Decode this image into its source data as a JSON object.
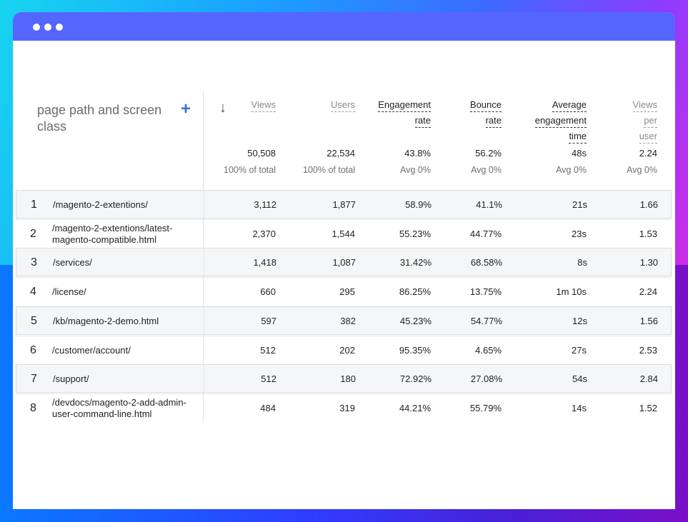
{
  "window": {
    "titlebar_color": "#5566ff"
  },
  "header": {
    "dimension_label": "page path and screen class",
    "columns": [
      {
        "key": "views",
        "lines": [
          "Views"
        ],
        "total": "50,508",
        "sub": "100% of total",
        "emphasis": false
      },
      {
        "key": "users",
        "lines": [
          "Users"
        ],
        "total": "22,534",
        "sub": "100% of total",
        "emphasis": false
      },
      {
        "key": "engagement_rate",
        "lines": [
          "Engagement",
          "rate"
        ],
        "total": "43.8%",
        "sub": "Avg 0%",
        "emphasis": true
      },
      {
        "key": "bounce_rate",
        "lines": [
          "Bounce",
          "rate"
        ],
        "total": "56.2%",
        "sub": "Avg 0%",
        "emphasis": true
      },
      {
        "key": "avg_engagement_time",
        "lines": [
          "Average",
          "engagement",
          "time"
        ],
        "total": "48s",
        "sub": "Avg 0%",
        "emphasis": true
      },
      {
        "key": "views_per_user",
        "lines": [
          "Views",
          "per",
          "user"
        ],
        "total": "2.24",
        "sub": "Avg 0%",
        "emphasis": false
      }
    ]
  },
  "rows": [
    {
      "index": "1",
      "path": "/magento-2-extentions/",
      "views": "3,112",
      "users": "1,877",
      "engagement_rate": "58.9%",
      "bounce_rate": "41.1%",
      "avg_engagement_time": "21s",
      "views_per_user": "1.66"
    },
    {
      "index": "2",
      "path": "/magento-2-extentions/latest-magento-compatible.html",
      "views": "2,370",
      "users": "1,544",
      "engagement_rate": "55.23%",
      "bounce_rate": "44.77%",
      "avg_engagement_time": "23s",
      "views_per_user": "1.53"
    },
    {
      "index": "3",
      "path": "/services/",
      "views": "1,418",
      "users": "1,087",
      "engagement_rate": "31.42%",
      "bounce_rate": "68.58%",
      "avg_engagement_time": "8s",
      "views_per_user": "1.30"
    },
    {
      "index": "4",
      "path": "/license/",
      "views": "660",
      "users": "295",
      "engagement_rate": "86.25%",
      "bounce_rate": "13.75%",
      "avg_engagement_time": "1m 10s",
      "views_per_user": "2.24"
    },
    {
      "index": "5",
      "path": "/kb/magento-2-demo.html",
      "views": "597",
      "users": "382",
      "engagement_rate": "45.23%",
      "bounce_rate": "54.77%",
      "avg_engagement_time": "12s",
      "views_per_user": "1.56"
    },
    {
      "index": "6",
      "path": "/customer/account/",
      "views": "512",
      "users": "202",
      "engagement_rate": "95.35%",
      "bounce_rate": "4.65%",
      "avg_engagement_time": "27s",
      "views_per_user": "2.53"
    },
    {
      "index": "7",
      "path": "/support/",
      "views": "512",
      "users": "180",
      "engagement_rate": "72.92%",
      "bounce_rate": "27.08%",
      "avg_engagement_time": "54s",
      "views_per_user": "2.84"
    },
    {
      "index": "8",
      "path": "/devdocs/magento-2-add-admin-user-command-line.html",
      "views": "484",
      "users": "319",
      "engagement_rate": "44.21%",
      "bounce_rate": "55.79%",
      "avg_engagement_time": "14s",
      "views_per_user": "1.52"
    }
  ]
}
